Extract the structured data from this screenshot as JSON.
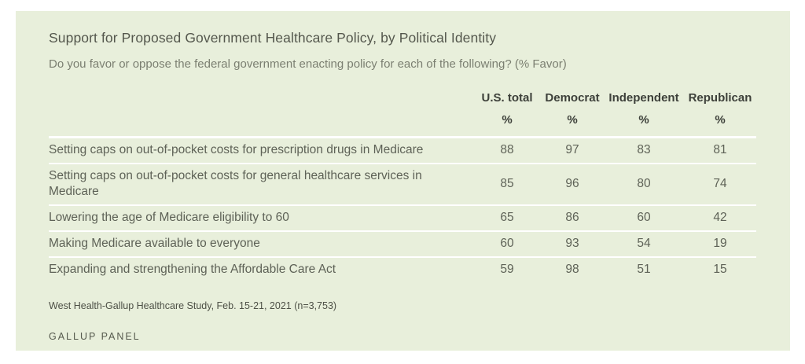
{
  "colors": {
    "page_bg": "#ffffff",
    "panel_bg": "#e8efdb",
    "divider": "#ffffff",
    "title_text": "#54574d",
    "subtitle_text": "#7b7f71",
    "header_text": "#3d403a",
    "body_text": "#5e6257",
    "source_text": "#4d5046",
    "brand_text": "#565a4e"
  },
  "header": {
    "title": "Support for Proposed Government Healthcare Policy, by Political Identity",
    "subtitle": "Do you favor or oppose the federal government enacting policy for each of the following? (% Favor)"
  },
  "table": {
    "columns": [
      "U.S. total",
      "Democrat",
      "Independent",
      "Republican"
    ],
    "unit_row": [
      "%",
      "%",
      "%",
      "%"
    ],
    "rows": [
      {
        "label": "Setting caps on out-of-pocket costs for prescription drugs in Medicare",
        "values": [
          88,
          97,
          83,
          81
        ]
      },
      {
        "label": "Setting caps on out-of-pocket costs for general healthcare services in Medicare",
        "values": [
          85,
          96,
          80,
          74
        ]
      },
      {
        "label": "Lowering the age of Medicare eligibility to 60",
        "values": [
          65,
          86,
          60,
          42
        ]
      },
      {
        "label": "Making Medicare available to everyone",
        "values": [
          60,
          93,
          54,
          19
        ]
      },
      {
        "label": "Expanding and strengthening the Affordable Care Act",
        "values": [
          59,
          98,
          51,
          15
        ]
      }
    ]
  },
  "footer": {
    "source": "West Health-Gallup Healthcare Study, Feb. 15-21, 2021 (n=3,753)",
    "brand": "GALLUP PANEL"
  },
  "chart_data": {
    "type": "table",
    "title": "Support for Proposed Government Healthcare Policy, by Political Identity",
    "subtitle": "Do you favor or oppose the federal government enacting policy for each of the following? (% Favor)",
    "unit": "% Favor",
    "categories": [
      "Setting caps on out-of-pocket costs for prescription drugs in Medicare",
      "Setting caps on out-of-pocket costs for general healthcare services in Medicare",
      "Lowering the age of Medicare eligibility to 60",
      "Making Medicare available to everyone",
      "Expanding and strengthening the Affordable Care Act"
    ],
    "series": [
      {
        "name": "U.S. total",
        "values": [
          88,
          85,
          65,
          60,
          59
        ]
      },
      {
        "name": "Democrat",
        "values": [
          97,
          96,
          86,
          93,
          98
        ]
      },
      {
        "name": "Independent",
        "values": [
          83,
          80,
          60,
          54,
          51
        ]
      },
      {
        "name": "Republican",
        "values": [
          81,
          74,
          42,
          19,
          15
        ]
      }
    ],
    "source": "West Health-Gallup Healthcare Study, Feb. 15-21, 2021 (n=3,753)"
  }
}
